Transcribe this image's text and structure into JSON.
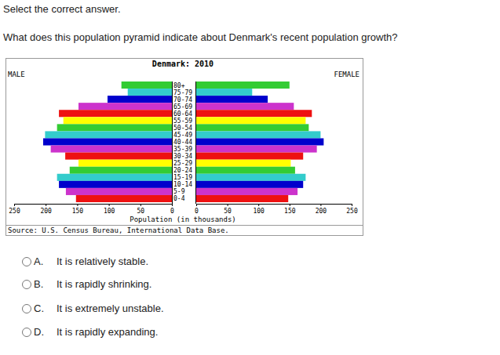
{
  "page": {
    "instruction": "Select the correct answer.",
    "question": "What does this population pyramid indicate about Denmark's recent population growth?",
    "options": [
      {
        "letter": "A.",
        "text": "It is relatively stable."
      },
      {
        "letter": "B.",
        "text": "It is rapidly shrinking."
      },
      {
        "letter": "C.",
        "text": "It is extremely unstable."
      },
      {
        "letter": "D.",
        "text": "It is rapidly expanding."
      }
    ]
  },
  "chart_data": {
    "type": "bar",
    "orientation": "horizontal",
    "title": "Denmark: 2010",
    "categories": [
      "80+",
      "75-79",
      "70-74",
      "65-69",
      "60-64",
      "55-59",
      "50-54",
      "45-49",
      "40-44",
      "35-39",
      "30-34",
      "25-29",
      "20-24",
      "15-19",
      "10-14",
      "5-9",
      "0-4"
    ],
    "series": [
      {
        "name": "MALE",
        "values": [
          80,
          70,
          102,
          148,
          179,
          172,
          182,
          201,
          204,
          192,
          169,
          148,
          162,
          182,
          179,
          168,
          152
        ]
      },
      {
        "name": "FEMALE",
        "values": [
          150,
          90,
          115,
          157,
          186,
          176,
          181,
          200,
          205,
          194,
          172,
          152,
          159,
          176,
          172,
          163,
          148
        ]
      }
    ],
    "colors": [
      "#33cc33",
      "#33cccc",
      "#0000cc",
      "#cc33cc",
      "#ee1111",
      "#ffff00",
      "#33cc33",
      "#33cccc",
      "#0000cc",
      "#cc33cc",
      "#ee1111",
      "#ffff00",
      "#33cc33",
      "#33cccc",
      "#0000cc",
      "#cc33cc",
      "#ee1111"
    ],
    "xlim": [
      0,
      250
    ],
    "xticks": [
      0,
      50,
      100,
      150,
      200,
      250
    ],
    "xlabel": "Population (in thousands)",
    "source": "Source: U.S. Census Bureau, International Data Base."
  }
}
